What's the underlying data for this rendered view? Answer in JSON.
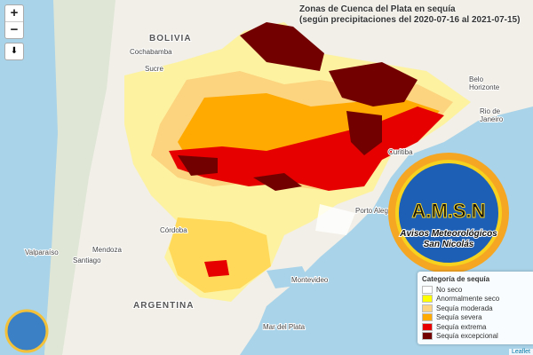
{
  "title": "Zonas de Cuenca del Plata en sequía",
  "subtitle": "(según precipitaciones del 2020-07-16 al 2021-07-15)",
  "controls": {
    "zoom_in": "+",
    "zoom_out": "−",
    "download": "⬇"
  },
  "legend": {
    "title": "Categoría de sequía",
    "items": [
      {
        "label": "No seco",
        "color": "#ffffff"
      },
      {
        "label": "Anormalmente seco",
        "color": "#ffff00"
      },
      {
        "label": "Sequía moderada",
        "color": "#fcd37f"
      },
      {
        "label": "Sequía severa",
        "color": "#ffaa00"
      },
      {
        "label": "Sequía extrema",
        "color": "#e60000"
      },
      {
        "label": "Sequía excepcional",
        "color": "#730000"
      }
    ]
  },
  "places": {
    "bolivia": "BOLIVIA",
    "cochabamba": "Cochabamba",
    "sucre": "Sucre",
    "belo": "Belo",
    "horizonte": "Horizonte",
    "rio": "Rio de",
    "janeiro": "Janeiro",
    "curitiba": "Curitiba",
    "porto_alegre": "Porto Alegre",
    "cordoba": "Córdoba",
    "mendoza": "Mendoza",
    "valparaiso": "Valparaíso",
    "santiago": "Santiago",
    "argentina": "ARGENTINA",
    "montevideo": "Montevideo",
    "mar_del_plata": "Mar del Plata"
  },
  "logo": {
    "initials": "A.M.S.N",
    "line1": "Avisos Meteorológicos",
    "line2": "San Nicolás"
  },
  "attribution": "Leaflet"
}
